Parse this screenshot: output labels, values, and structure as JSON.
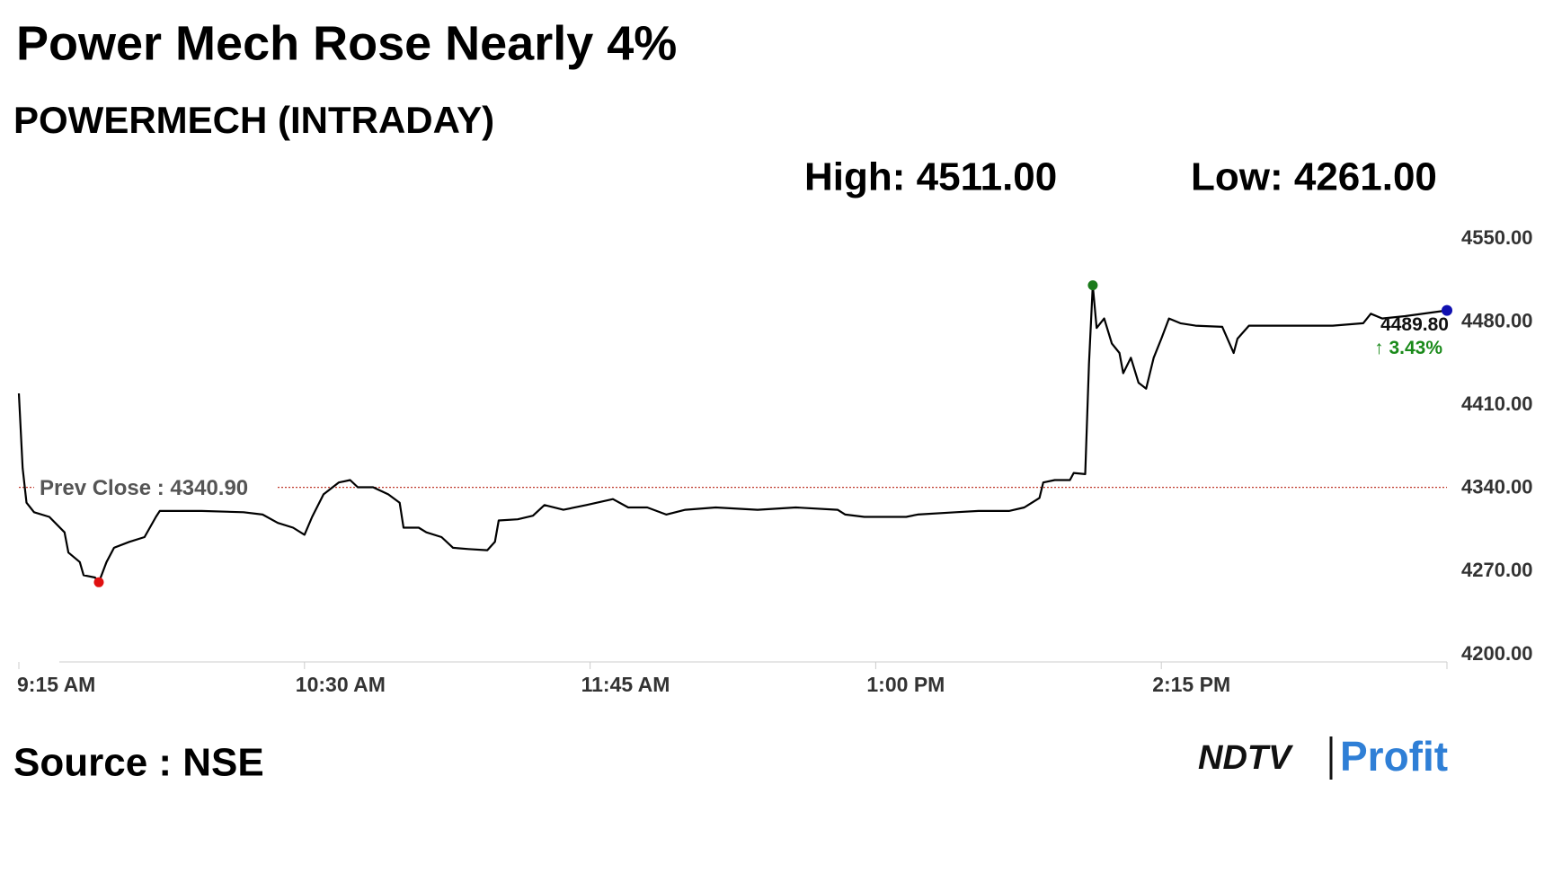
{
  "chart_data": {
    "type": "line",
    "title": "Power Mech Rose Nearly 4%",
    "subtitle": "POWERMECH (INTRADAY)",
    "high_label": "High: 4511.00",
    "low_label": "Low: 4261.00",
    "source": "Source : NSE",
    "logo": {
      "brand": "NDTV",
      "product": "Profit"
    },
    "x": [
      "09:15",
      "09:16",
      "09:17",
      "09:19",
      "09:23",
      "09:27",
      "09:28",
      "09:31",
      "09:32",
      "09:35",
      "09:36",
      "09:38",
      "09:40",
      "09:44",
      "09:48",
      "09:51",
      "09:52",
      "10:03",
      "10:14",
      "10:19",
      "10:23",
      "10:27",
      "10:30",
      "10:32",
      "10:35",
      "10:39",
      "10:42",
      "10:44",
      "10:48",
      "10:52",
      "10:55",
      "10:56",
      "11:00",
      "11:02",
      "11:06",
      "11:09",
      "11:13",
      "11:18",
      "11:20",
      "11:21",
      "11:26",
      "11:30",
      "11:33",
      "11:38",
      "11:44",
      "11:51",
      "11:55",
      "12:00",
      "12:05",
      "12:10",
      "12:18",
      "12:29",
      "12:39",
      "12:50",
      "12:52",
      "12:57",
      "13:08",
      "13:11",
      "13:21",
      "13:27",
      "13:35",
      "13:39",
      "13:43",
      "13:44",
      "13:47",
      "13:51",
      "13:52",
      "13:55",
      "13:56",
      "13:57",
      "13:58",
      "14:00",
      "14:02",
      "14:04",
      "14:05",
      "14:07",
      "14:09",
      "14:11",
      "14:13",
      "14:15",
      "14:17",
      "14:20",
      "14:24",
      "14:31",
      "14:34",
      "14:35",
      "14:38",
      "14:50",
      "15:00",
      "15:08",
      "15:10",
      "15:13",
      "15:19",
      "15:30"
    ],
    "series": [
      {
        "name": "POWERMECH",
        "color": "#000000",
        "values": [
          4420,
          4357,
          4328,
          4320,
          4316,
          4303,
          4286,
          4278,
          4267,
          4265,
          4261,
          4278,
          4290,
          4295,
          4299,
          4316,
          4321,
          4321,
          4320,
          4318,
          4311,
          4307,
          4301,
          4316,
          4335,
          4345,
          4347,
          4341,
          4341,
          4335,
          4328,
          4307,
          4307,
          4303,
          4299,
          4290,
          4289,
          4288,
          4295,
          4313,
          4314,
          4317,
          4326,
          4322,
          4326,
          4331,
          4324,
          4324,
          4318,
          4322,
          4324,
          4322,
          4324,
          4322,
          4318,
          4316,
          4316,
          4318,
          4320,
          4321,
          4321,
          4324,
          4332,
          4345,
          4347,
          4347,
          4353,
          4352,
          4445,
          4511,
          4475,
          4483,
          4462,
          4454,
          4437,
          4450,
          4429,
          4424,
          4450,
          4466,
          4483,
          4479,
          4477,
          4476,
          4454,
          4466,
          4477,
          4477,
          4477,
          4479,
          4487,
          4483,
          4485,
          4489.8
        ]
      }
    ],
    "high_index": 69,
    "low_index": 10,
    "prev_close": {
      "value": 4340.9,
      "label": "Prev Close : 4340.90"
    },
    "last_price": {
      "value": 4489.8,
      "label": "4489.80"
    },
    "change": {
      "value": 3.43,
      "label": "↑ 3.43%"
    },
    "xlim": [
      "09:15",
      "15:30"
    ],
    "xticks": [
      {
        "value": "09:15",
        "label": "9:15 AM"
      },
      {
        "value": "10:30",
        "label": "10:30 AM"
      },
      {
        "value": "11:45",
        "label": "11:45 AM"
      },
      {
        "value": "13:00",
        "label": "1:00 PM"
      },
      {
        "value": "14:15",
        "label": "2:15 PM"
      },
      {
        "value": "15:30",
        "label": null
      }
    ],
    "ylim": [
      4200,
      4550
    ],
    "yticks": [
      {
        "value": 4200,
        "label": "4200.00"
      },
      {
        "value": 4270,
        "label": "4270.00"
      },
      {
        "value": 4340,
        "label": "4340.00"
      },
      {
        "value": 4410,
        "label": "4410.00"
      },
      {
        "value": 4480,
        "label": "4480.00"
      },
      {
        "value": 4550,
        "label": "4550.00"
      }
    ],
    "grid": false
  }
}
